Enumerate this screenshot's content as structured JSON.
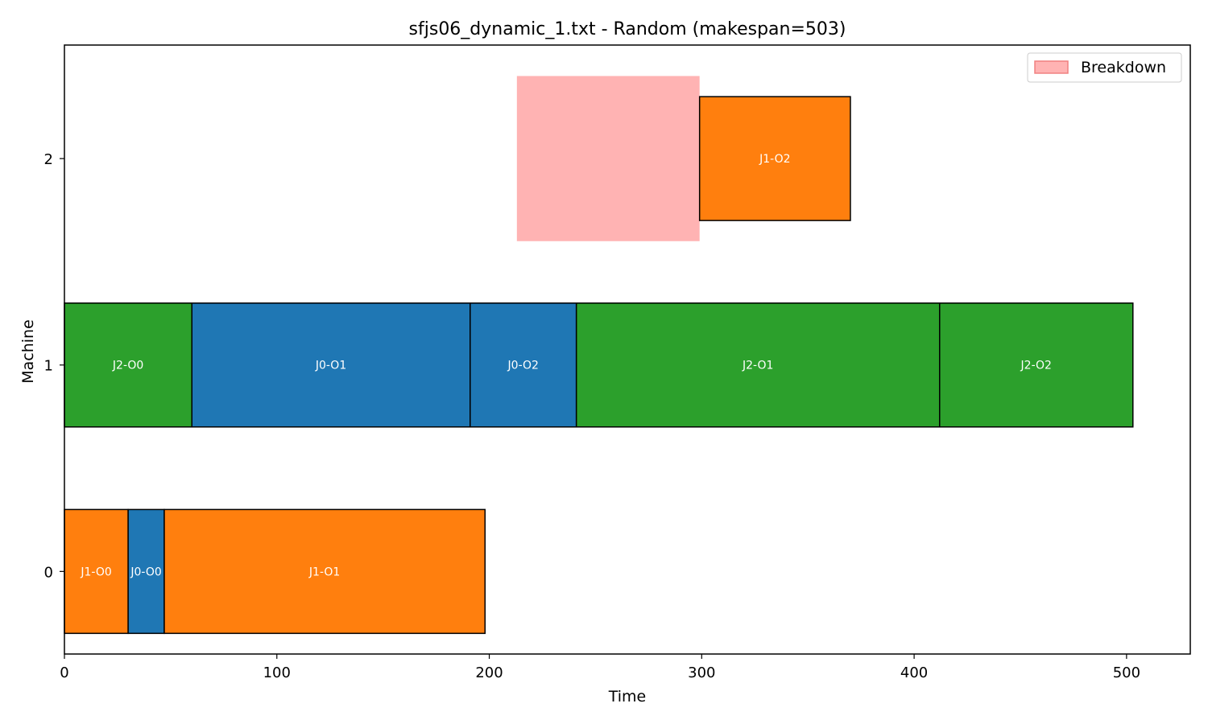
{
  "chart_data": {
    "type": "gantt",
    "title": "sfjs06_dynamic_1.txt - Random (makespan=503)",
    "xlabel": "Time",
    "ylabel": "Machine",
    "xlim": [
      0,
      530
    ],
    "ylim": [
      -0.4,
      2.55
    ],
    "xticks": [
      0,
      100,
      200,
      300,
      400,
      500
    ],
    "yticks": [
      0,
      1,
      2
    ],
    "bar_height": 0.6,
    "job_colors": {
      "J0": "#1f77b4",
      "J1": "#ff7f0e",
      "J2": "#2ca02c"
    },
    "operations": [
      {
        "machine": 0,
        "job": "J1",
        "label": "J1-O0",
        "start": 0,
        "end": 30
      },
      {
        "machine": 0,
        "job": "J0",
        "label": "J0-O0",
        "start": 30,
        "end": 47
      },
      {
        "machine": 0,
        "job": "J1",
        "label": "J1-O1",
        "start": 47,
        "end": 198
      },
      {
        "machine": 1,
        "job": "J2",
        "label": "J2-O0",
        "start": 0,
        "end": 60
      },
      {
        "machine": 1,
        "job": "J0",
        "label": "J0-O1",
        "start": 60,
        "end": 191
      },
      {
        "machine": 1,
        "job": "J0",
        "label": "J0-O2",
        "start": 191,
        "end": 241
      },
      {
        "machine": 1,
        "job": "J2",
        "label": "J2-O1",
        "start": 241,
        "end": 412
      },
      {
        "machine": 1,
        "job": "J2",
        "label": "J2-O2",
        "start": 412,
        "end": 503
      },
      {
        "machine": 2,
        "job": "J1",
        "label": "J1-O2",
        "start": 299,
        "end": 370
      }
    ],
    "breakdowns": [
      {
        "machine": 2,
        "start": 213,
        "end": 299,
        "y_low": 1.6,
        "y_high": 2.4
      }
    ],
    "breakdown_color": "#ffb3b3",
    "breakdown_edge_color": "#f08080",
    "legend": {
      "entries": [
        {
          "label": "Breakdown",
          "color": "#ffb3b3"
        }
      ],
      "placement": "top-right"
    }
  }
}
